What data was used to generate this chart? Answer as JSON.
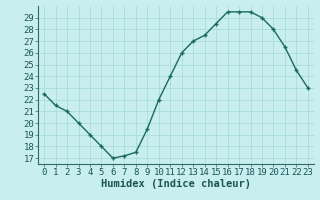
{
  "x": [
    0,
    1,
    2,
    3,
    4,
    5,
    6,
    7,
    8,
    9,
    10,
    11,
    12,
    13,
    14,
    15,
    16,
    17,
    18,
    19,
    20,
    21,
    22,
    23
  ],
  "y": [
    22.5,
    21.5,
    21.0,
    20.0,
    19.0,
    18.0,
    17.0,
    17.2,
    17.5,
    19.5,
    22.0,
    24.0,
    26.0,
    27.0,
    27.5,
    28.5,
    29.5,
    29.5,
    29.5,
    29.0,
    28.0,
    26.5,
    24.5,
    23.0
  ],
  "line_color": "#1a6b5a",
  "marker": "+",
  "bg_color": "#c8eef0",
  "grid_color": "#aadddd",
  "xlabel": "Humidex (Indice chaleur)",
  "xlim": [
    -0.5,
    23.5
  ],
  "ylim": [
    16.5,
    30
  ],
  "yticks": [
    17,
    18,
    19,
    20,
    21,
    22,
    23,
    24,
    25,
    26,
    27,
    28,
    29
  ],
  "xticks": [
    0,
    1,
    2,
    3,
    4,
    5,
    6,
    7,
    8,
    9,
    10,
    11,
    12,
    13,
    14,
    15,
    16,
    17,
    18,
    19,
    20,
    21,
    22,
    23
  ],
  "xlabel_fontsize": 7.5,
  "tick_fontsize": 6.5,
  "linewidth": 1.0,
  "markersize": 3.5,
  "markeredgewidth": 1.0
}
